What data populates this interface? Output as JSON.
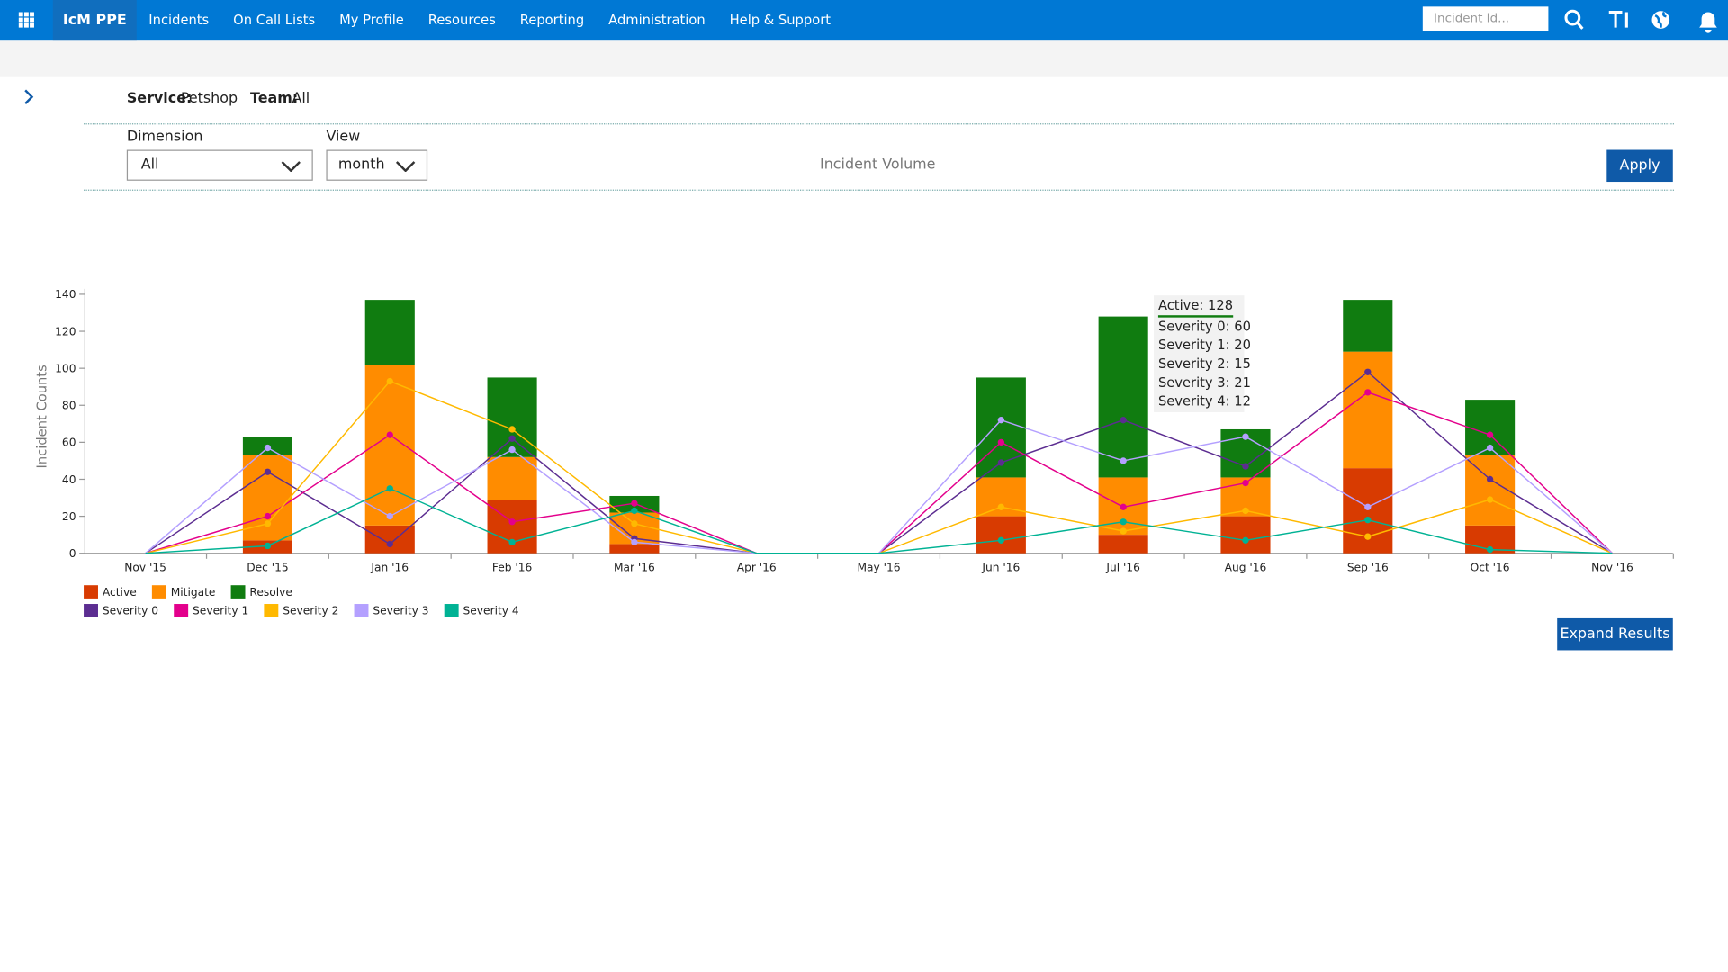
{
  "nav": {
    "brand": "IcM PPE",
    "items": [
      "Incidents",
      "On Call Lists",
      "My Profile",
      "Resources",
      "Reporting",
      "Administration",
      "Help & Support"
    ],
    "search_placeholder": "Incident Id..."
  },
  "filters": {
    "service_label": "Service:",
    "service": "Petshop",
    "team_label": "Team:",
    "team": "All",
    "dimension_label": "Dimension",
    "dimension": "All",
    "view_label": "View",
    "view": "month",
    "chart_name": "Incident Volume",
    "apply": "Apply"
  },
  "chart_data": {
    "type": "bar",
    "stacked": true,
    "y_label": "Incident Counts",
    "legend": "bottom-left",
    "categories": [
      "Nov '15",
      "Dec '15",
      "Jan '16",
      "Feb '16",
      "Mar '16",
      "Apr '16",
      "May '16",
      "Jun '16",
      "Jul '16",
      "Aug '16",
      "Sep '16",
      "Oct '16",
      "Nov '16"
    ],
    "series": [
      {
        "name": "Active",
        "type": "bar",
        "color": "#d83b01",
        "values": [
          0,
          7,
          15,
          29,
          5,
          0,
          0,
          20,
          10,
          20,
          46,
          15,
          0
        ]
      },
      {
        "name": "Mitigate",
        "type": "bar",
        "color": "#ff8c00",
        "values": [
          0,
          46,
          87,
          23,
          17,
          0,
          0,
          21,
          31,
          21,
          63,
          38,
          0
        ]
      },
      {
        "name": "Resolve",
        "type": "bar",
        "color": "#107c10",
        "values": [
          0,
          10,
          35,
          43,
          9,
          0,
          0,
          54,
          87,
          26,
          28,
          30,
          0
        ]
      },
      {
        "name": "Severity 0",
        "type": "line",
        "color": "#5c2d91",
        "values": [
          0,
          44,
          5,
          62,
          8,
          0,
          0,
          49,
          72,
          47,
          98,
          40,
          0
        ]
      },
      {
        "name": "Severity 1",
        "type": "line",
        "color": "#e3008c",
        "values": [
          0,
          20,
          64,
          17,
          27,
          0,
          0,
          60,
          25,
          38,
          87,
          64,
          0
        ]
      },
      {
        "name": "Severity 2",
        "type": "line",
        "color": "#ffb900",
        "values": [
          0,
          16,
          93,
          67,
          16,
          0,
          0,
          25,
          12,
          23,
          9,
          29,
          0
        ]
      },
      {
        "name": "Severity 3",
        "type": "line",
        "color": "#b4a0ff",
        "values": [
          0,
          57,
          20,
          56,
          6,
          0,
          0,
          72,
          50,
          63,
          25,
          57,
          0
        ]
      },
      {
        "name": "Severity 4",
        "type": "line",
        "color": "#00b294",
        "values": [
          0,
          4,
          35,
          6,
          23,
          0,
          0,
          7,
          17,
          7,
          18,
          2,
          0
        ]
      }
    ],
    "ylim": [
      0,
      140
    ],
    "yticks": [
      0,
      20,
      40,
      60,
      80,
      100,
      120,
      140
    ],
    "tooltip": {
      "title": "Active: 128",
      "lines": [
        "Severity 0: 60",
        "Severity 1: 20",
        "Severity 2: 15",
        "Severity 3: 21",
        "Severity 4: 12"
      ]
    }
  },
  "expand": "Expand Results"
}
